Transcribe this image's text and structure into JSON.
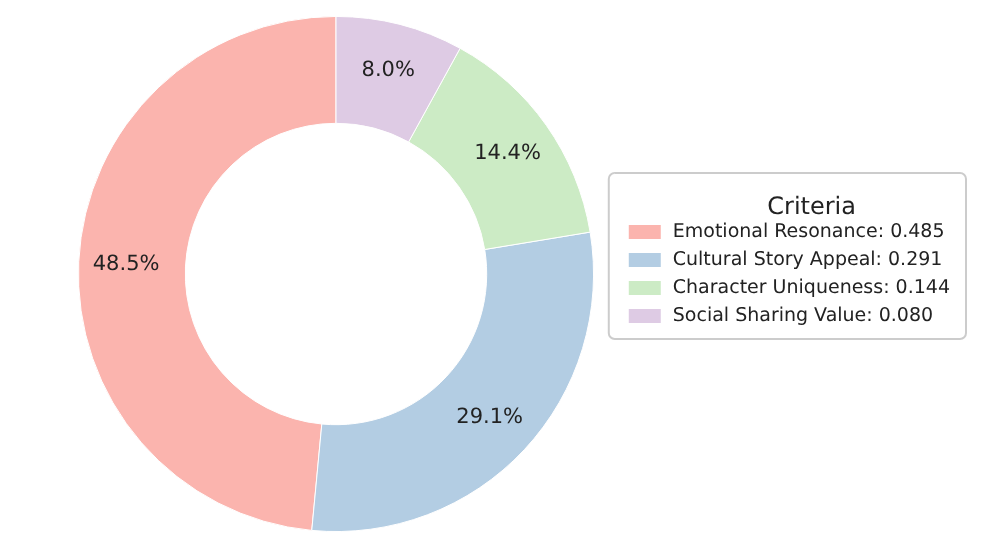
{
  "chart_data": {
    "type": "donut",
    "legend_title": "Criteria",
    "legend": "right",
    "categories": [
      "Emotional Resonance: 0.485",
      "Cultural Story Appeal: 0.291",
      "Character Uniqueness: 0.144",
      "Social Sharing Value: 0.080"
    ],
    "values": [
      48.5,
      29.1,
      14.4,
      8.0
    ],
    "value_labels": [
      "48.5%",
      "29.1%",
      "14.4%",
      "8.0%"
    ],
    "colors": [
      "#fbb4ae",
      "#b3cde3",
      "#ccebc5",
      "#decbe4"
    ]
  }
}
